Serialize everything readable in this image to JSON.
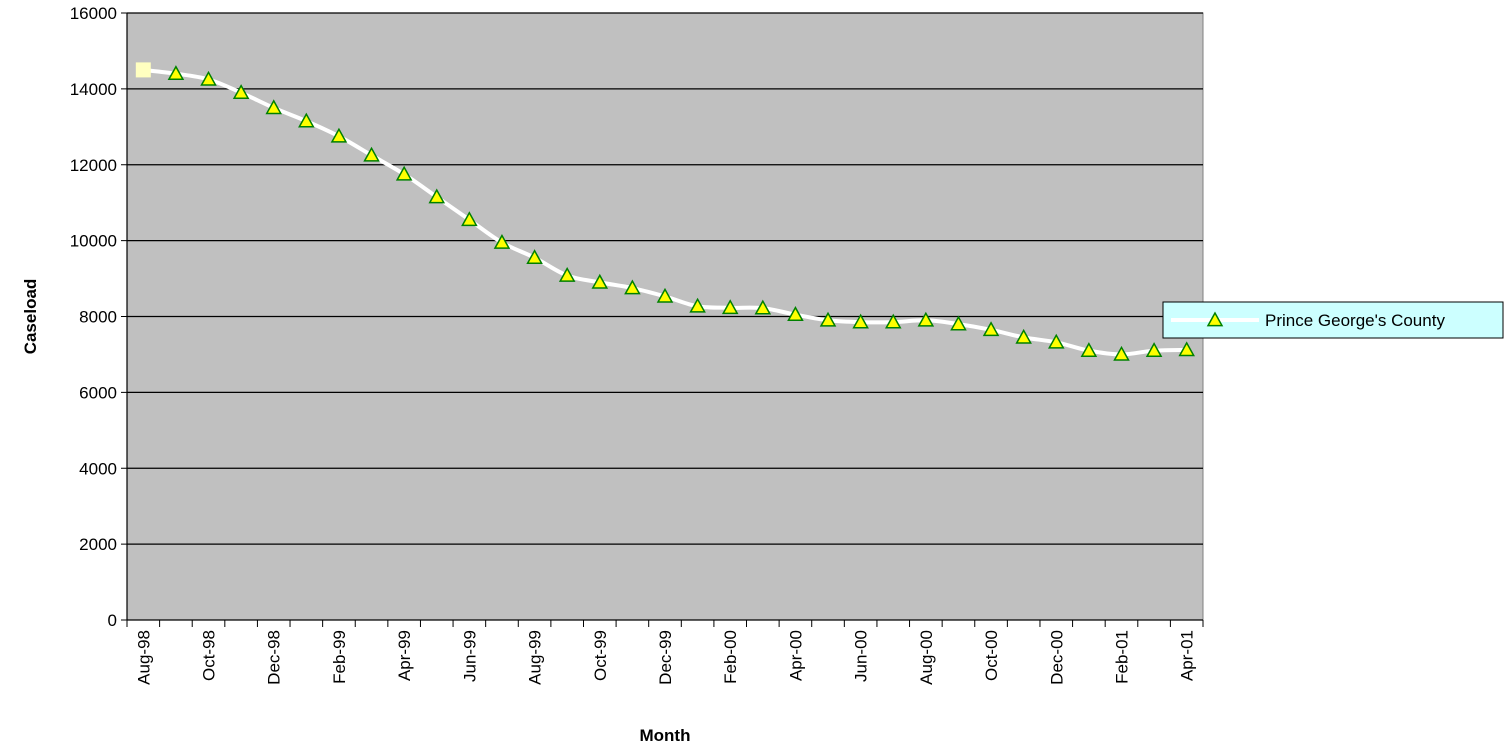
{
  "chart_data": {
    "type": "line",
    "xlabel": "Month",
    "ylabel": "Caseload",
    "ylim": [
      0,
      16000
    ],
    "yticks": [
      0,
      2000,
      4000,
      6000,
      8000,
      10000,
      12000,
      14000,
      16000
    ],
    "categories": [
      "Aug-98",
      "Sep-98",
      "Oct-98",
      "Nov-98",
      "Dec-98",
      "Jan-99",
      "Feb-99",
      "Mar-99",
      "Apr-99",
      "May-99",
      "Jun-99",
      "Jul-99",
      "Aug-99",
      "Sep-99",
      "Oct-99",
      "Nov-99",
      "Dec-99",
      "Jan-00",
      "Feb-00",
      "Mar-00",
      "Apr-00",
      "May-00",
      "Jun-00",
      "Jul-00",
      "Aug-00",
      "Sep-00",
      "Oct-00",
      "Nov-00",
      "Dec-00",
      "Jan-01",
      "Feb-01",
      "Mar-01",
      "Apr-01"
    ],
    "category_labels_shown": [
      "Aug-98",
      "",
      "Oct-98",
      "",
      "Dec-98",
      "",
      "Feb-99",
      "",
      "Apr-99",
      "",
      "Jun-99",
      "",
      "Aug-99",
      "",
      "Oct-99",
      "",
      "Dec-99",
      "",
      "Feb-00",
      "",
      "Apr-00",
      "",
      "Jun-00",
      "",
      "Aug-00",
      "",
      "Oct-00",
      "",
      "Dec-00",
      "",
      "Feb-01",
      "",
      "Apr-01"
    ],
    "grid": true,
    "legend_position": "right",
    "series": [
      {
        "name": "Prince George's County",
        "values": [
          14500,
          14400,
          14250,
          13900,
          13500,
          13150,
          12750,
          12250,
          11750,
          11150,
          10550,
          9950,
          9550,
          9080,
          8900,
          8750,
          8530,
          8270,
          8230,
          8220,
          8050,
          7900,
          7850,
          7850,
          7900,
          7800,
          7650,
          7450,
          7320,
          7100,
          7000,
          7100,
          7120
        ],
        "line_color": "#ffffff",
        "marker": "triangle",
        "marker_fill": "#ffff00",
        "marker_stroke": "#008000",
        "first_marker": "square",
        "first_marker_fill": "#ffffc0"
      }
    ],
    "plot_background": "#c0c0c0",
    "legend_background": "#ccffff"
  }
}
